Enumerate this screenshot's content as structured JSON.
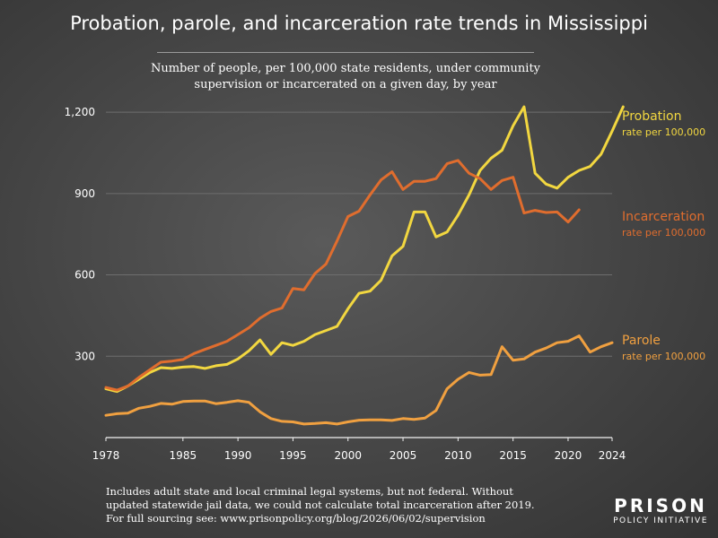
{
  "title": "Probation, parole, and incarceration rate trends in Mississippi",
  "subtitle_line1": "Number of people, per 100,000 state residents, under community",
  "subtitle_line2": "supervision or incarcerated on a given day, by year",
  "footnote": {
    "line1": "Includes adult state and local criminal legal systems, but not federal. Without",
    "line2": "updated statewide jail data, we could not calculate total incarceration after 2019.",
    "line3": "For full sourcing see: www.prisonpolicy.org/blog/2026/06/02/supervision"
  },
  "logo": {
    "main": "PRISON",
    "sub": "POLICY INITIATIVE"
  },
  "chart_data": {
    "type": "line",
    "xlim": [
      1978,
      2024
    ],
    "ylim": [
      0,
      1250
    ],
    "x_ticks": [
      "1978",
      "1985",
      "1990",
      "1995",
      "2000",
      "2005",
      "2010",
      "2015",
      "2020",
      "2024"
    ],
    "y_ticks": [
      "300",
      "600",
      "900",
      "1,200"
    ],
    "grid": "horizontal",
    "series": [
      {
        "name": "Probation",
        "label_sub": "rate per 100,000",
        "color": "#f2d740",
        "points": [
          [
            1978,
            180
          ],
          [
            1979,
            170
          ],
          [
            1980,
            190
          ],
          [
            1981,
            215
          ],
          [
            1982,
            240
          ],
          [
            1983,
            258
          ],
          [
            1984,
            255
          ],
          [
            1985,
            260
          ],
          [
            1986,
            262
          ],
          [
            1987,
            255
          ],
          [
            1988,
            265
          ],
          [
            1989,
            270
          ],
          [
            1990,
            290
          ],
          [
            1991,
            320
          ],
          [
            1992,
            360
          ],
          [
            1993,
            307
          ],
          [
            1994,
            350
          ],
          [
            1995,
            340
          ],
          [
            1996,
            355
          ],
          [
            1997,
            380
          ],
          [
            1998,
            395
          ],
          [
            1999,
            410
          ],
          [
            2000,
            475
          ],
          [
            2001,
            532
          ],
          [
            2002,
            540
          ],
          [
            2003,
            580
          ],
          [
            2004,
            670
          ],
          [
            2005,
            705
          ],
          [
            2006,
            832
          ],
          [
            2007,
            832
          ],
          [
            2008,
            740
          ],
          [
            2009,
            758
          ],
          [
            2010,
            820
          ],
          [
            2011,
            895
          ],
          [
            2012,
            985
          ],
          [
            2013,
            1030
          ],
          [
            2014,
            1060
          ],
          [
            2015,
            1150
          ],
          [
            2016,
            1220
          ],
          [
            2017,
            975
          ],
          [
            2018,
            935
          ],
          [
            2019,
            920
          ],
          [
            2020,
            960
          ],
          [
            2021,
            985
          ],
          [
            2022,
            1000
          ],
          [
            2023,
            1045
          ],
          [
            2024,
            1130
          ],
          [
            2025,
            1220
          ]
        ]
      },
      {
        "name": "Incarceration",
        "label_sub": "rate per 100,000",
        "color": "#e06d2e",
        "points": [
          [
            1978,
            185
          ],
          [
            1979,
            175
          ],
          [
            1980,
            190
          ],
          [
            1981,
            222
          ],
          [
            1982,
            250
          ],
          [
            1983,
            278
          ],
          [
            1984,
            282
          ],
          [
            1985,
            288
          ],
          [
            1986,
            310
          ],
          [
            1987,
            325
          ],
          [
            1988,
            340
          ],
          [
            1989,
            355
          ],
          [
            1990,
            380
          ],
          [
            1991,
            405
          ],
          [
            1992,
            440
          ],
          [
            1993,
            465
          ],
          [
            1994,
            478
          ],
          [
            1995,
            550
          ],
          [
            1996,
            545
          ],
          [
            1997,
            605
          ],
          [
            1998,
            640
          ],
          [
            1999,
            725
          ],
          [
            2000,
            815
          ],
          [
            2001,
            835
          ],
          [
            2002,
            895
          ],
          [
            2003,
            950
          ],
          [
            2004,
            980
          ],
          [
            2005,
            915
          ],
          [
            2006,
            945
          ],
          [
            2007,
            945
          ],
          [
            2008,
            955
          ],
          [
            2009,
            1010
          ],
          [
            2010,
            1022
          ],
          [
            2011,
            975
          ],
          [
            2012,
            955
          ],
          [
            2013,
            915
          ],
          [
            2014,
            948
          ],
          [
            2015,
            960
          ],
          [
            2016,
            828
          ],
          [
            2017,
            838
          ],
          [
            2018,
            830
          ],
          [
            2019,
            832
          ],
          [
            2020,
            795
          ],
          [
            2021,
            840
          ]
        ]
      },
      {
        "name": "Parole",
        "label_sub": "rate per 100,000",
        "color": "#f0a040",
        "points": [
          [
            1978,
            82
          ],
          [
            1979,
            88
          ],
          [
            1980,
            90
          ],
          [
            1981,
            108
          ],
          [
            1982,
            115
          ],
          [
            1983,
            126
          ],
          [
            1984,
            123
          ],
          [
            1985,
            133
          ],
          [
            1986,
            135
          ],
          [
            1987,
            135
          ],
          [
            1988,
            125
          ],
          [
            1989,
            130
          ],
          [
            1990,
            136
          ],
          [
            1991,
            130
          ],
          [
            1992,
            95
          ],
          [
            1993,
            70
          ],
          [
            1994,
            60
          ],
          [
            1995,
            58
          ],
          [
            1996,
            50
          ],
          [
            1997,
            52
          ],
          [
            1998,
            55
          ],
          [
            1999,
            50
          ],
          [
            2000,
            58
          ],
          [
            2001,
            64
          ],
          [
            2002,
            65
          ],
          [
            2003,
            65
          ],
          [
            2004,
            63
          ],
          [
            2005,
            70
          ],
          [
            2006,
            67
          ],
          [
            2007,
            72
          ],
          [
            2008,
            100
          ],
          [
            2009,
            180
          ],
          [
            2010,
            215
          ],
          [
            2011,
            240
          ],
          [
            2012,
            230
          ],
          [
            2013,
            232
          ],
          [
            2014,
            335
          ],
          [
            2015,
            285
          ],
          [
            2016,
            290
          ],
          [
            2017,
            315
          ],
          [
            2018,
            330
          ],
          [
            2019,
            350
          ],
          [
            2020,
            355
          ],
          [
            2021,
            375
          ],
          [
            2022,
            315
          ],
          [
            2023,
            335
          ],
          [
            2024,
            350
          ]
        ]
      }
    ]
  }
}
